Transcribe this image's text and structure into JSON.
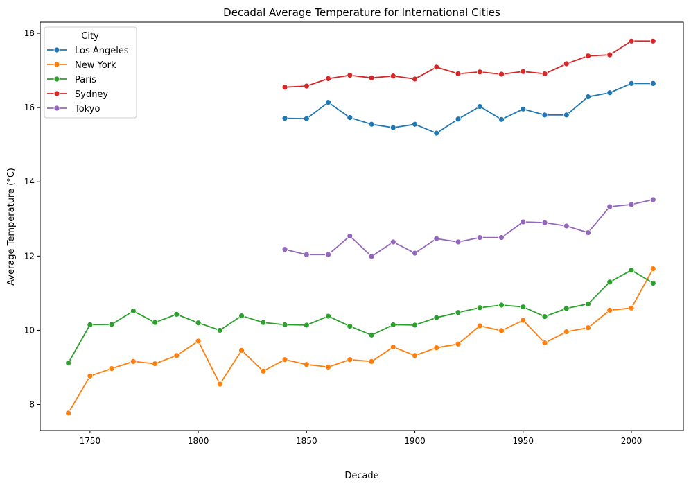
{
  "chart_data": {
    "type": "line",
    "title": "Decadal Average Temperature for International Cities",
    "xlabel": "Decade",
    "ylabel": "Average Temperature (°C)",
    "xlim": [
      1727,
      2024
    ],
    "ylim": [
      7.3,
      18.3
    ],
    "xticks": [
      1750,
      1800,
      1850,
      1900,
      1950,
      2000
    ],
    "yticks": [
      8,
      10,
      12,
      14,
      16,
      18
    ],
    "grid": false,
    "legend": {
      "title": "City",
      "placement": "top-left"
    },
    "series": [
      {
        "name": "Los Angeles",
        "color": "#1f77b4",
        "x": [
          1840,
          1850,
          1860,
          1870,
          1880,
          1890,
          1900,
          1910,
          1920,
          1930,
          1940,
          1950,
          1960,
          1970,
          1980,
          1990,
          2000,
          2010
        ],
        "values": [
          15.71,
          15.7,
          16.14,
          15.73,
          15.55,
          15.46,
          15.55,
          15.31,
          15.69,
          16.03,
          15.68,
          15.96,
          15.8,
          15.8,
          16.29,
          16.4,
          16.65,
          16.65
        ]
      },
      {
        "name": "New York",
        "color": "#ff7f0e",
        "x": [
          1740,
          1750,
          1760,
          1770,
          1780,
          1790,
          1800,
          1810,
          1820,
          1830,
          1840,
          1850,
          1860,
          1870,
          1880,
          1890,
          1900,
          1910,
          1920,
          1930,
          1940,
          1950,
          1960,
          1970,
          1980,
          1990,
          2000,
          2010
        ],
        "values": [
          7.77,
          8.77,
          8.97,
          9.16,
          9.1,
          9.32,
          9.71,
          8.55,
          9.46,
          8.9,
          9.21,
          9.08,
          9.01,
          9.21,
          9.16,
          9.55,
          9.32,
          9.53,
          9.63,
          10.12,
          9.99,
          10.27,
          9.66,
          9.96,
          10.07,
          10.54,
          10.6,
          11.66
        ]
      },
      {
        "name": "Paris",
        "color": "#2ca02c",
        "x": [
          1740,
          1750,
          1760,
          1770,
          1780,
          1790,
          1800,
          1810,
          1820,
          1830,
          1840,
          1850,
          1860,
          1870,
          1880,
          1890,
          1900,
          1910,
          1920,
          1930,
          1940,
          1950,
          1960,
          1970,
          1980,
          1990,
          2000,
          2010
        ],
        "values": [
          9.12,
          10.15,
          10.16,
          10.52,
          10.21,
          10.43,
          10.2,
          10.0,
          10.39,
          10.21,
          10.15,
          10.14,
          10.38,
          10.11,
          9.87,
          10.15,
          10.14,
          10.34,
          10.48,
          10.61,
          10.68,
          10.63,
          10.37,
          10.59,
          10.71,
          11.3,
          11.62,
          11.27
        ]
      },
      {
        "name": "Sydney",
        "color": "#d62728",
        "x": [
          1840,
          1850,
          1860,
          1870,
          1880,
          1890,
          1900,
          1910,
          1920,
          1930,
          1940,
          1950,
          1960,
          1970,
          1980,
          1990,
          2000,
          2010
        ],
        "values": [
          16.55,
          16.58,
          16.78,
          16.87,
          16.8,
          16.85,
          16.77,
          17.09,
          16.91,
          16.96,
          16.9,
          16.97,
          16.91,
          17.18,
          17.39,
          17.42,
          17.79,
          17.79
        ]
      },
      {
        "name": "Tokyo",
        "color": "#9467bd",
        "x": [
          1840,
          1850,
          1860,
          1870,
          1880,
          1890,
          1900,
          1910,
          1920,
          1930,
          1940,
          1950,
          1960,
          1970,
          1980,
          1990,
          2000,
          2010
        ],
        "values": [
          12.18,
          12.04,
          12.04,
          12.54,
          11.99,
          12.38,
          12.08,
          12.47,
          12.38,
          12.5,
          12.5,
          12.92,
          12.9,
          12.81,
          12.63,
          13.33,
          13.39,
          13.52
        ]
      }
    ]
  }
}
